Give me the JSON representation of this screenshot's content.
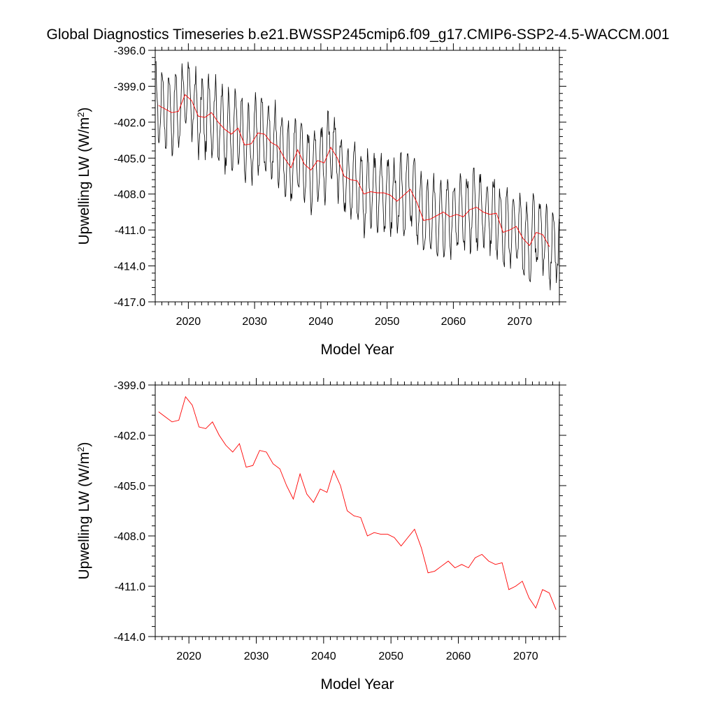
{
  "figure": {
    "title": "Global Diagnostics Timeseries b.e21.BWSSP245cmip6.f09_g17.CMIP6-SSP2-4.5-WACCM.001"
  },
  "chart_data": [
    {
      "type": "line",
      "panel": "top",
      "xlabel": "Model Year",
      "ylabel": "Upwelling LW (W/m²)",
      "ylabel_parts": {
        "main": "Upwelling LW (W/m",
        "sup": "2",
        "end": ")"
      },
      "xlim": [
        2015,
        2076
      ],
      "ylim": [
        -417.0,
        -396.0
      ],
      "x_ticks": [
        2020,
        2030,
        2040,
        2050,
        2060,
        2070
      ],
      "x_tick_labels": [
        "2020",
        "2030",
        "2040",
        "2050",
        "2060",
        "2070"
      ],
      "y_ticks": [
        -396.0,
        -399.0,
        -402.0,
        -405.0,
        -408.0,
        -411.0,
        -414.0,
        -417.0
      ],
      "y_tick_labels": [
        "-396.0",
        "-399.0",
        "-402.0",
        "-405.0",
        "-408.0",
        "-411.0",
        "-414.0",
        "-417.0"
      ],
      "grid": false,
      "series": [
        {
          "color": "#000000",
          "monthly_model": {
            "start_year": 2015,
            "months": 732,
            "seasonal_amplitude": 3.0,
            "noise_amplitude": 0.9
          }
        },
        {
          "color": "#ff0000",
          "uses_annual_mean": true
        }
      ]
    },
    {
      "type": "line",
      "panel": "bottom",
      "xlabel": "Model Year",
      "ylabel": "Upwelling LW (W/m²)",
      "ylabel_parts": {
        "main": "Upwelling LW (W/m",
        "sup": "2",
        "end": ")"
      },
      "xlim": [
        2015,
        2075
      ],
      "ylim": [
        -414.0,
        -399.0
      ],
      "x_ticks": [
        2020,
        2030,
        2040,
        2050,
        2060,
        2070
      ],
      "x_tick_labels": [
        "2020",
        "2030",
        "2040",
        "2050",
        "2060",
        "2070"
      ],
      "y_ticks": [
        -399.0,
        -402.0,
        -405.0,
        -408.0,
        -411.0,
        -414.0
      ],
      "y_tick_labels": [
        "-399.0",
        "-402.0",
        "-405.0",
        "-408.0",
        "-411.0",
        "-414.0"
      ],
      "grid": false,
      "series": [
        {
          "color": "#ff0000",
          "x": [
            2015.5,
            2016.5,
            2017.5,
            2018.5,
            2019.5,
            2020.5,
            2021.5,
            2022.5,
            2023.5,
            2024.5,
            2025.5,
            2026.5,
            2027.5,
            2028.5,
            2029.5,
            2030.5,
            2031.5,
            2032.5,
            2033.5,
            2034.5,
            2035.5,
            2036.5,
            2037.5,
            2038.5,
            2039.5,
            2040.5,
            2041.5,
            2042.5,
            2043.5,
            2044.5,
            2045.5,
            2046.5,
            2047.5,
            2048.5,
            2049.5,
            2050.5,
            2051.5,
            2052.5,
            2053.5,
            2054.5,
            2055.5,
            2056.5,
            2057.5,
            2058.5,
            2059.5,
            2060.5,
            2061.5,
            2062.5,
            2063.5,
            2064.5,
            2065.5,
            2066.5,
            2067.5,
            2068.5,
            2069.5,
            2070.5,
            2071.5,
            2072.5,
            2073.5,
            2074.5
          ],
          "y": [
            -400.6,
            -400.9,
            -401.2,
            -401.1,
            -399.7,
            -400.2,
            -401.5,
            -401.6,
            -401.2,
            -402.0,
            -402.6,
            -403.0,
            -402.5,
            -403.9,
            -403.8,
            -402.9,
            -403.0,
            -403.7,
            -404.0,
            -405.0,
            -405.8,
            -404.3,
            -405.5,
            -406.0,
            -405.2,
            -405.4,
            -404.1,
            -405.0,
            -406.5,
            -406.8,
            -406.9,
            -408.0,
            -407.8,
            -407.9,
            -407.9,
            -408.1,
            -408.6,
            -408.1,
            -407.6,
            -408.7,
            -410.2,
            -410.1,
            -409.8,
            -409.5,
            -409.9,
            -409.7,
            -409.9,
            -409.3,
            -409.1,
            -409.5,
            -409.7,
            -409.6,
            -411.2,
            -411.0,
            -410.7,
            -411.7,
            -412.3,
            -411.2,
            -411.4,
            -412.4
          ]
        }
      ]
    }
  ]
}
